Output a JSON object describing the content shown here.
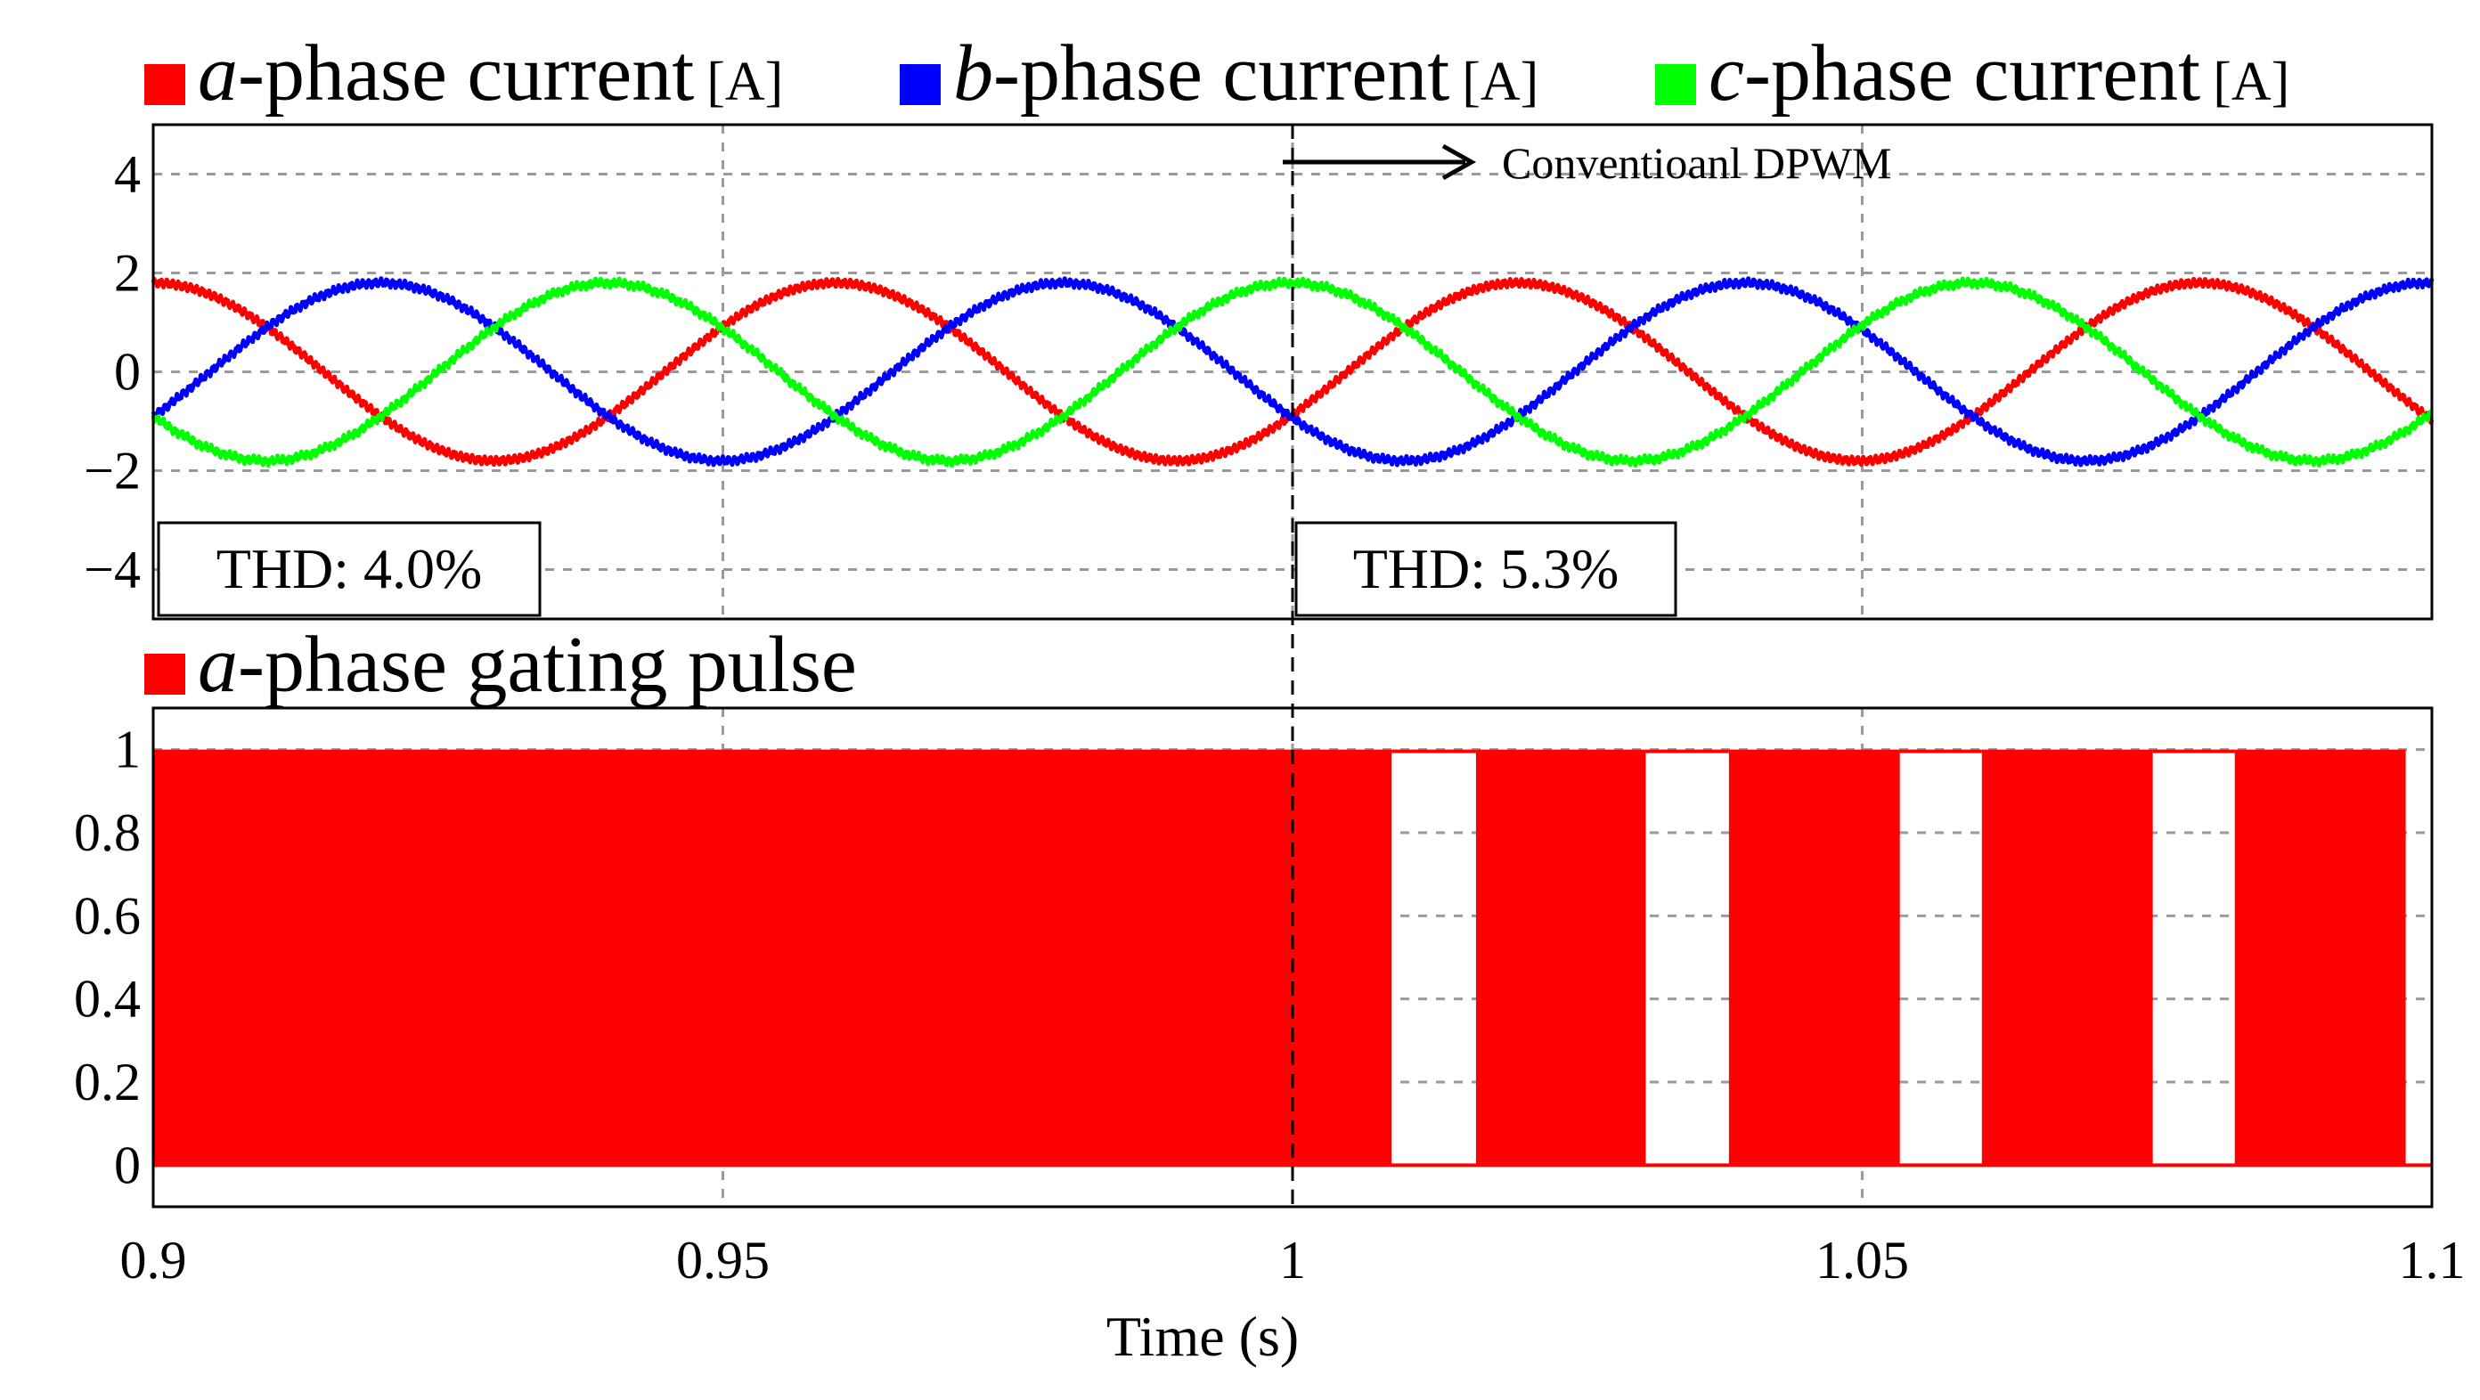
{
  "chart_data": [
    {
      "type": "line",
      "legend": [
        {
          "var": "a",
          "text": "-phase current",
          "unit": "[A]",
          "color": "#ff0000"
        },
        {
          "var": "b",
          "text": "-phase current",
          "unit": "[A]",
          "color": "#0000ff"
        },
        {
          "var": "c",
          "text": "-phase current",
          "unit": "[A]",
          "color": "#00ff00"
        }
      ],
      "legend_placement": "top",
      "xlim": [
        0.9,
        1.1
      ],
      "ylim": [
        -5,
        5
      ],
      "yticks": [
        "4",
        "2",
        "0",
        "−2",
        "−4"
      ],
      "ytick_values": [
        4,
        2,
        0,
        -2,
        -4
      ],
      "grid": true,
      "series": [
        {
          "color": "#ff0000",
          "amplitude": 1.8,
          "frequency_hz": 16.7,
          "phase_deg": 90
        },
        {
          "color": "#0000ff",
          "amplitude": 1.8,
          "frequency_hz": 16.7,
          "phase_deg": -30
        },
        {
          "color": "#00ff00",
          "amplitude": 1.8,
          "frequency_hz": 16.7,
          "phase_deg": -150
        }
      ],
      "annotations": {
        "thd_left": "THD: 4.0%",
        "thd_right": "THD: 5.3%",
        "arrow_label": "Conventioanl DPWM",
        "switch_time": 1.0
      }
    },
    {
      "type": "area",
      "legend": [
        {
          "var": "a",
          "text": "-phase gating pulse",
          "color": "#ff0000"
        }
      ],
      "xlim": [
        0.9,
        1.1
      ],
      "ylim": [
        -0.1,
        1.1
      ],
      "yticks": [
        "1",
        "0.8",
        "0.6",
        "0.4",
        "0.2",
        "0"
      ],
      "ytick_values": [
        1,
        0.8,
        0.6,
        0.4,
        0.2,
        0
      ],
      "xticks": [
        "0.9",
        "0.95",
        "1",
        "1.05",
        "1.1"
      ],
      "xtick_values": [
        0.9,
        0.95,
        1.0,
        1.05,
        1.1
      ],
      "xlabel": "Time (s)",
      "grid": true,
      "fill_color": "#ff0000",
      "on_intervals": [
        [
          0.9,
          1.0087
        ],
        [
          1.0161,
          1.031
        ],
        [
          1.0383,
          1.0533
        ],
        [
          1.0605,
          1.0755
        ],
        [
          1.0827,
          1.0977
        ]
      ]
    }
  ]
}
